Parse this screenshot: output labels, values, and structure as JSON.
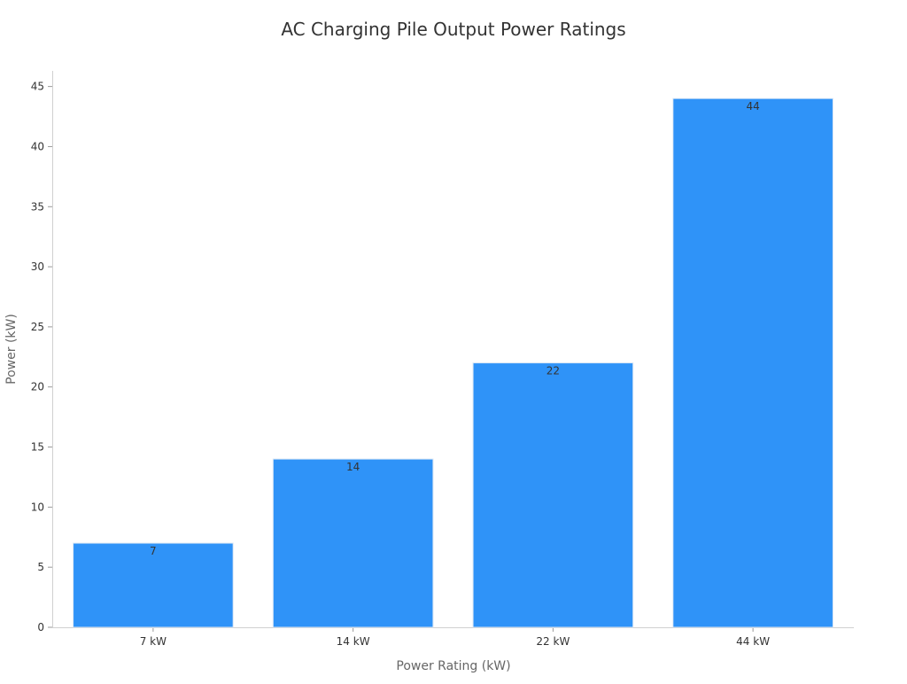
{
  "chart_data": {
    "type": "bar",
    "title": "AC Charging Pile Output Power Ratings",
    "xlabel": "Power Rating (kW)",
    "ylabel": "Power (kW)",
    "categories": [
      "7 kW",
      "14 kW",
      "22 kW",
      "44 kW"
    ],
    "values": [
      7,
      14,
      22,
      44
    ],
    "data_labels": [
      "7",
      "14",
      "22",
      "44"
    ],
    "ylim": [
      0,
      46.3
    ],
    "yticks": [
      0,
      5,
      10,
      15,
      20,
      25,
      30,
      35,
      40,
      45
    ],
    "grid": false,
    "legend": "none",
    "bar_color": "#2f93f8"
  }
}
